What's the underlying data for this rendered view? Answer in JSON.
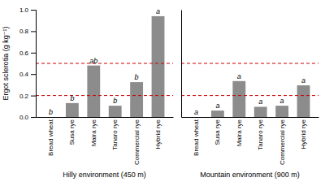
{
  "chart_data": [
    {
      "type": "bar",
      "categories": [
        "Bread wheat",
        "Susa rye",
        "Maira rye",
        "Tanaro rye",
        "Commercial rye",
        "Hybrid rye"
      ],
      "values": [
        0.0,
        0.13,
        0.48,
        0.105,
        0.325,
        0.94
      ],
      "annotations": [
        "b",
        "b",
        "ab",
        "b",
        "b",
        "a"
      ],
      "color": "#8c8c8c",
      "hlines": [
        {
          "value": 0.5,
          "color": "#cc0000",
          "line_style": "dashed"
        },
        {
          "value": 0.2,
          "color": "#cc0000",
          "line_style": "dashed"
        }
      ],
      "ylabel": "Ergot sclerotia (g kg⁻¹)",
      "xlabel": "Hilly environment (450 m)",
      "ylim": [
        0.0,
        1.0
      ],
      "yticks": [
        {
          "value": 0.0,
          "label": "0.0"
        },
        {
          "value": 0.2,
          "label": "0.2"
        },
        {
          "value": 0.4,
          "label": "0.4"
        },
        {
          "value": 0.6,
          "label": "0.6"
        },
        {
          "value": 0.8,
          "label": "0.8"
        },
        {
          "value": 1.0,
          "label": "1.0"
        }
      ]
    },
    {
      "type": "bar",
      "categories": [
        "Bread wheat",
        "Susa rye",
        "Maira rye",
        "Tanaro rye",
        "Commercial rye",
        "Hybrid rye"
      ],
      "values": [
        0.0,
        0.06,
        0.335,
        0.095,
        0.105,
        0.295
      ],
      "annotations": [
        "a",
        "a",
        "a",
        "a",
        "a",
        "a"
      ],
      "color": "#8c8c8c",
      "hlines": [
        {
          "value": 0.5,
          "color": "#cc0000",
          "line_style": "dashed"
        },
        {
          "value": 0.2,
          "color": "#cc0000",
          "line_style": "dashed"
        }
      ],
      "xlabel": "Mountain environment (900 m)",
      "ylim": [
        0.0,
        1.0
      ],
      "tick_labels": "x"
    }
  ]
}
